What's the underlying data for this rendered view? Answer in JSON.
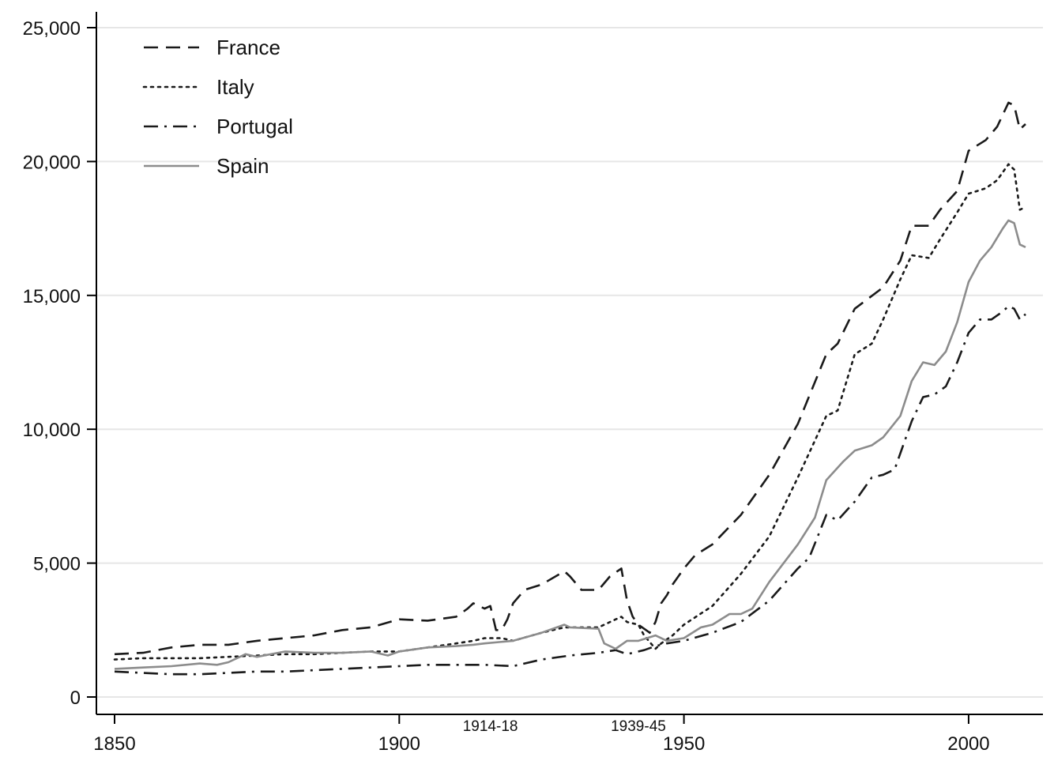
{
  "chart_data": {
    "type": "line",
    "title": "",
    "xlabel": "",
    "ylabel": "",
    "xlim": [
      1850,
      2010
    ],
    "ylim": [
      0,
      25000
    ],
    "x_ticks": [
      1850,
      1900,
      1950,
      2000
    ],
    "x_tick_labels": [
      "1850",
      "1900",
      "1950",
      "2000"
    ],
    "y_ticks": [
      0,
      5000,
      10000,
      15000,
      20000,
      25000
    ],
    "y_tick_labels": [
      "0",
      "5,000",
      "10,000",
      "15,000",
      "20,000",
      "25,000"
    ],
    "grid": "horizontal",
    "legend_position": "top-left",
    "annotations": [
      {
        "text": "1914-18",
        "x": 1916
      },
      {
        "text": "1939-45",
        "x": 1942
      }
    ],
    "series": [
      {
        "name": "France",
        "style": "dashed",
        "color": "#1a1a1a",
        "points": [
          [
            1850,
            1600
          ],
          [
            1855,
            1650
          ],
          [
            1860,
            1850
          ],
          [
            1865,
            1950
          ],
          [
            1870,
            1950
          ],
          [
            1875,
            2100
          ],
          [
            1880,
            2200
          ],
          [
            1885,
            2300
          ],
          [
            1890,
            2500
          ],
          [
            1895,
            2600
          ],
          [
            1900,
            2900
          ],
          [
            1905,
            2850
          ],
          [
            1910,
            3000
          ],
          [
            1912,
            3300
          ],
          [
            1913,
            3500
          ],
          [
            1915,
            3300
          ],
          [
            1916,
            3400
          ],
          [
            1917,
            2500
          ],
          [
            1918,
            2500
          ],
          [
            1919,
            2900
          ],
          [
            1920,
            3500
          ],
          [
            1922,
            4000
          ],
          [
            1925,
            4200
          ],
          [
            1929,
            4700
          ],
          [
            1930,
            4500
          ],
          [
            1932,
            4000
          ],
          [
            1935,
            4000
          ],
          [
            1937,
            4500
          ],
          [
            1939,
            4800
          ],
          [
            1940,
            3600
          ],
          [
            1941,
            3000
          ],
          [
            1942,
            2700
          ],
          [
            1944,
            2400
          ],
          [
            1945,
            2800
          ],
          [
            1946,
            3500
          ],
          [
            1947,
            3800
          ],
          [
            1948,
            4200
          ],
          [
            1950,
            4800
          ],
          [
            1952,
            5300
          ],
          [
            1955,
            5700
          ],
          [
            1960,
            6800
          ],
          [
            1965,
            8300
          ],
          [
            1970,
            10200
          ],
          [
            1975,
            12800
          ],
          [
            1977,
            13200
          ],
          [
            1980,
            14500
          ],
          [
            1985,
            15300
          ],
          [
            1988,
            16300
          ],
          [
            1990,
            17600
          ],
          [
            1993,
            17600
          ],
          [
            1995,
            18200
          ],
          [
            1998,
            18900
          ],
          [
            2000,
            20400
          ],
          [
            2003,
            20800
          ],
          [
            2005,
            21300
          ],
          [
            2007,
            22200
          ],
          [
            2008,
            22100
          ],
          [
            2009,
            21200
          ],
          [
            2010,
            21400
          ]
        ]
      },
      {
        "name": "Italy",
        "style": "dotted",
        "color": "#1a1a1a",
        "points": [
          [
            1850,
            1400
          ],
          [
            1855,
            1450
          ],
          [
            1860,
            1450
          ],
          [
            1865,
            1450
          ],
          [
            1870,
            1500
          ],
          [
            1875,
            1550
          ],
          [
            1880,
            1600
          ],
          [
            1885,
            1600
          ],
          [
            1890,
            1650
          ],
          [
            1895,
            1700
          ],
          [
            1900,
            1700
          ],
          [
            1905,
            1850
          ],
          [
            1910,
            2000
          ],
          [
            1913,
            2100
          ],
          [
            1915,
            2200
          ],
          [
            1918,
            2200
          ],
          [
            1920,
            2100
          ],
          [
            1925,
            2400
          ],
          [
            1929,
            2600
          ],
          [
            1930,
            2600
          ],
          [
            1935,
            2600
          ],
          [
            1939,
            3000
          ],
          [
            1940,
            2800
          ],
          [
            1942,
            2700
          ],
          [
            1943,
            2300
          ],
          [
            1945,
            1800
          ],
          [
            1946,
            2000
          ],
          [
            1948,
            2300
          ],
          [
            1950,
            2700
          ],
          [
            1955,
            3400
          ],
          [
            1960,
            4600
          ],
          [
            1965,
            6000
          ],
          [
            1970,
            8200
          ],
          [
            1975,
            10500
          ],
          [
            1977,
            10700
          ],
          [
            1980,
            12800
          ],
          [
            1983,
            13200
          ],
          [
            1985,
            14100
          ],
          [
            1988,
            15600
          ],
          [
            1990,
            16500
          ],
          [
            1993,
            16400
          ],
          [
            1995,
            17100
          ],
          [
            1998,
            18100
          ],
          [
            2000,
            18800
          ],
          [
            2003,
            19000
          ],
          [
            2005,
            19300
          ],
          [
            2007,
            19900
          ],
          [
            2008,
            19700
          ],
          [
            2009,
            18200
          ],
          [
            2010,
            18300
          ]
        ]
      },
      {
        "name": "Portugal",
        "style": "dash-dot",
        "color": "#1a1a1a",
        "points": [
          [
            1850,
            950
          ],
          [
            1855,
            900
          ],
          [
            1860,
            850
          ],
          [
            1865,
            850
          ],
          [
            1870,
            900
          ],
          [
            1875,
            950
          ],
          [
            1880,
            950
          ],
          [
            1885,
            1000
          ],
          [
            1890,
            1050
          ],
          [
            1895,
            1100
          ],
          [
            1900,
            1150
          ],
          [
            1905,
            1200
          ],
          [
            1910,
            1200
          ],
          [
            1915,
            1200
          ],
          [
            1920,
            1150
          ],
          [
            1925,
            1400
          ],
          [
            1930,
            1550
          ],
          [
            1935,
            1650
          ],
          [
            1938,
            1750
          ],
          [
            1940,
            1600
          ],
          [
            1943,
            1750
          ],
          [
            1945,
            1900
          ],
          [
            1947,
            2000
          ],
          [
            1950,
            2100
          ],
          [
            1955,
            2400
          ],
          [
            1960,
            2800
          ],
          [
            1965,
            3600
          ],
          [
            1970,
            4800
          ],
          [
            1972,
            5200
          ],
          [
            1975,
            6800
          ],
          [
            1977,
            6600
          ],
          [
            1980,
            7300
          ],
          [
            1983,
            8200
          ],
          [
            1985,
            8300
          ],
          [
            1987,
            8500
          ],
          [
            1990,
            10300
          ],
          [
            1992,
            11200
          ],
          [
            1994,
            11300
          ],
          [
            1996,
            11600
          ],
          [
            1998,
            12500
          ],
          [
            2000,
            13600
          ],
          [
            2002,
            14100
          ],
          [
            2004,
            14100
          ],
          [
            2006,
            14400
          ],
          [
            2007,
            14600
          ],
          [
            2008,
            14500
          ],
          [
            2009,
            14100
          ],
          [
            2010,
            14300
          ]
        ]
      },
      {
        "name": "Spain",
        "style": "solid",
        "color": "#8c8c8c",
        "points": [
          [
            1850,
            1050
          ],
          [
            1855,
            1100
          ],
          [
            1860,
            1150
          ],
          [
            1865,
            1250
          ],
          [
            1868,
            1200
          ],
          [
            1870,
            1300
          ],
          [
            1873,
            1600
          ],
          [
            1875,
            1500
          ],
          [
            1880,
            1700
          ],
          [
            1885,
            1650
          ],
          [
            1890,
            1650
          ],
          [
            1895,
            1700
          ],
          [
            1898,
            1550
          ],
          [
            1900,
            1700
          ],
          [
            1905,
            1850
          ],
          [
            1910,
            1900
          ],
          [
            1913,
            1950
          ],
          [
            1915,
            2000
          ],
          [
            1920,
            2100
          ],
          [
            1925,
            2400
          ],
          [
            1929,
            2700
          ],
          [
            1930,
            2600
          ],
          [
            1935,
            2550
          ],
          [
            1936,
            2000
          ],
          [
            1938,
            1800
          ],
          [
            1940,
            2100
          ],
          [
            1942,
            2100
          ],
          [
            1945,
            2300
          ],
          [
            1947,
            2100
          ],
          [
            1950,
            2200
          ],
          [
            1953,
            2600
          ],
          [
            1955,
            2700
          ],
          [
            1958,
            3100
          ],
          [
            1960,
            3100
          ],
          [
            1962,
            3300
          ],
          [
            1965,
            4300
          ],
          [
            1970,
            5700
          ],
          [
            1973,
            6700
          ],
          [
            1975,
            8100
          ],
          [
            1978,
            8800
          ],
          [
            1980,
            9200
          ],
          [
            1983,
            9400
          ],
          [
            1985,
            9700
          ],
          [
            1988,
            10500
          ],
          [
            1990,
            11800
          ],
          [
            1992,
            12500
          ],
          [
            1994,
            12400
          ],
          [
            1996,
            12900
          ],
          [
            1998,
            14000
          ],
          [
            2000,
            15500
          ],
          [
            2002,
            16300
          ],
          [
            2004,
            16800
          ],
          [
            2006,
            17500
          ],
          [
            2007,
            17800
          ],
          [
            2008,
            17700
          ],
          [
            2009,
            16900
          ],
          [
            2010,
            16800
          ]
        ]
      }
    ]
  }
}
